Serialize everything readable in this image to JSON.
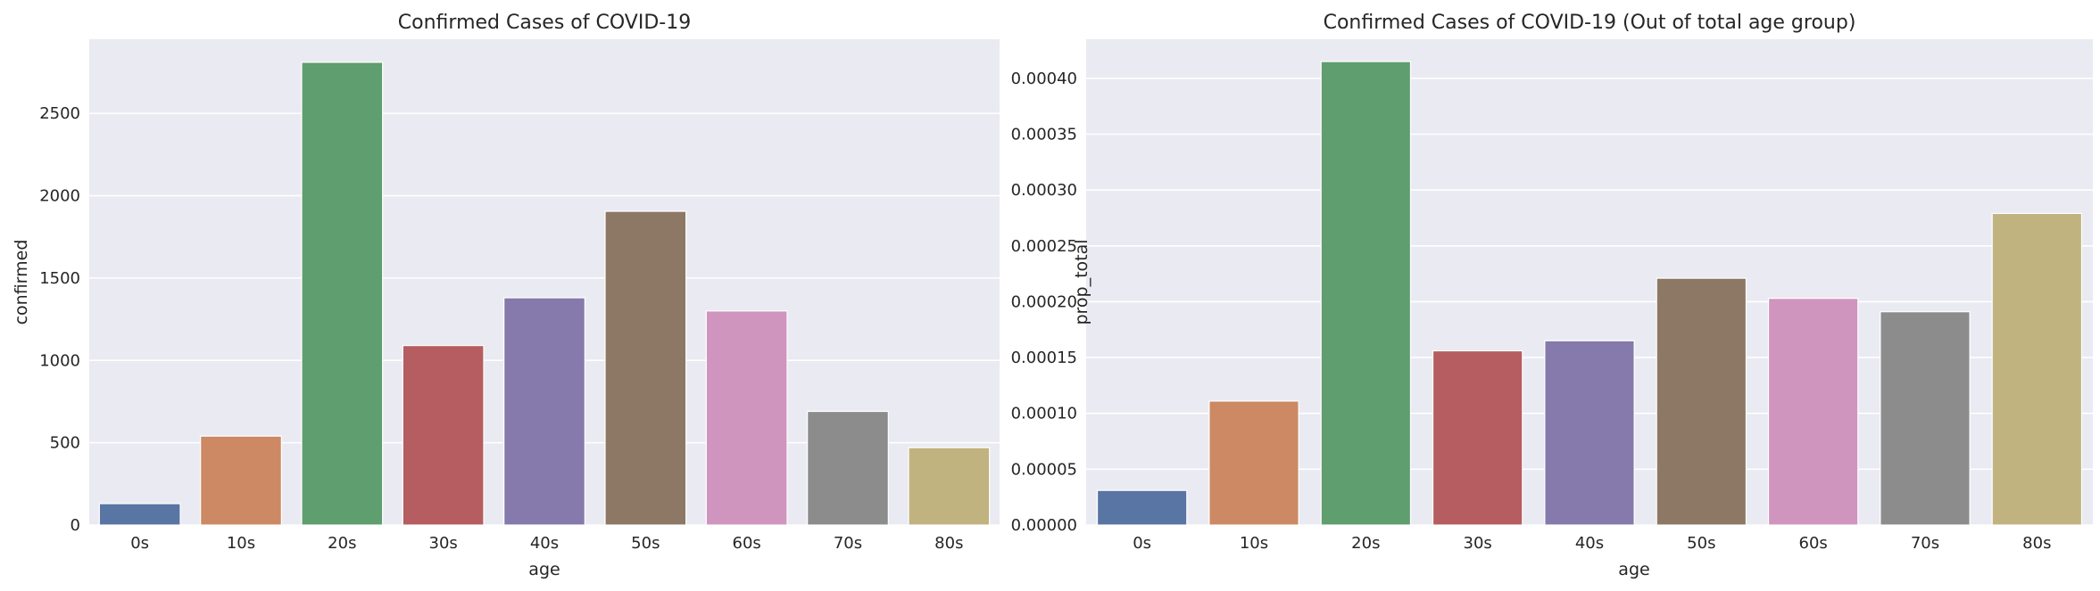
{
  "chart_data": [
    {
      "type": "bar",
      "title": "Confirmed Cases of COVID-19",
      "xlabel": "age",
      "ylabel": "confirmed",
      "categories": [
        "0s",
        "10s",
        "20s",
        "30s",
        "40s",
        "50s",
        "60s",
        "70s",
        "80s"
      ],
      "values": [
        130,
        540,
        2810,
        1090,
        1380,
        1905,
        1300,
        690,
        470
      ],
      "ylim": [
        0,
        2950
      ],
      "yticks": [
        0,
        500,
        1000,
        1500,
        2000,
        2500
      ],
      "ytick_labels": [
        "0",
        "500",
        "1000",
        "1500",
        "2000",
        "2500"
      ],
      "grid": true,
      "colors": [
        "#5875a4",
        "#cc8963",
        "#5f9e6e",
        "#b55d60",
        "#857aab",
        "#8d7866",
        "#d095bf",
        "#8c8c8c",
        "#c1b37f"
      ]
    },
    {
      "type": "bar",
      "title": "Confirmed Cases of COVID-19 (Out of total age group)",
      "xlabel": "age",
      "ylabel": "prop_total",
      "categories": [
        "0s",
        "10s",
        "20s",
        "30s",
        "40s",
        "50s",
        "60s",
        "70s",
        "80s"
      ],
      "values": [
        3.1e-05,
        0.000111,
        0.000415,
        0.000156,
        0.000165,
        0.000221,
        0.000203,
        0.000191,
        0.000279
      ],
      "ylim": [
        0,
        0.000435
      ],
      "yticks": [
        0,
        5e-05,
        0.0001,
        0.00015,
        0.0002,
        0.00025,
        0.0003,
        0.00035,
        0.0004
      ],
      "ytick_labels": [
        "0.00000",
        "0.00005",
        "0.00010",
        "0.00015",
        "0.00020",
        "0.00025",
        "0.00030",
        "0.00035",
        "0.00040"
      ],
      "grid": true,
      "colors": [
        "#5875a4",
        "#cc8963",
        "#5f9e6e",
        "#b55d60",
        "#857aab",
        "#8d7866",
        "#d095bf",
        "#8c8c8c",
        "#c1b37f"
      ]
    }
  ]
}
